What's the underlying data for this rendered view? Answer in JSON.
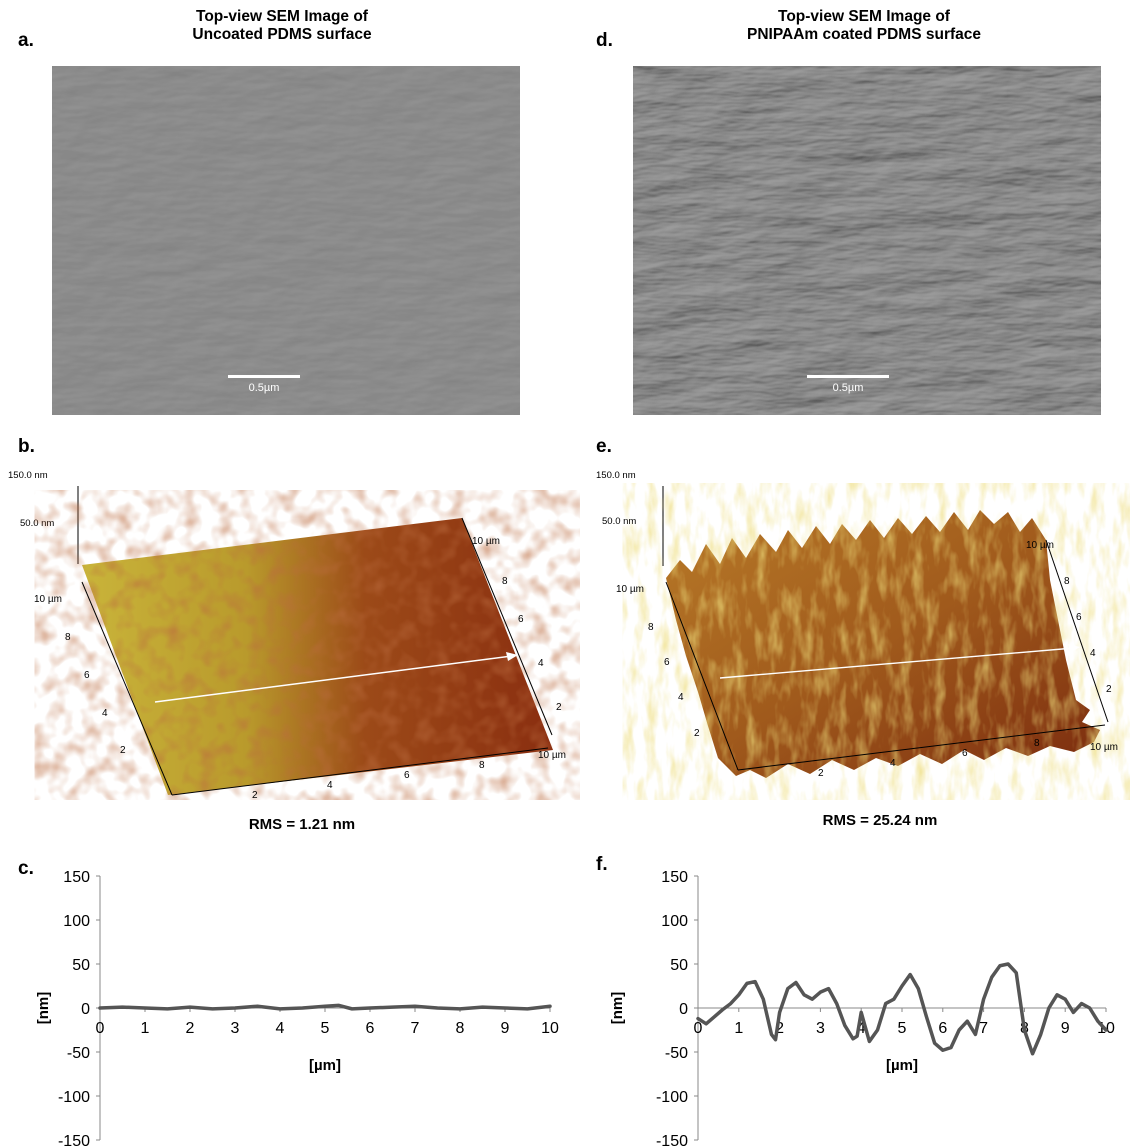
{
  "panels": {
    "a": {
      "letter": "a.",
      "title_line1": "Top-view SEM Image of",
      "title_line2": "Uncoated PDMS surface",
      "scale_bar": "0.5µm"
    },
    "d": {
      "letter": "d.",
      "title_line1": "Top-view SEM Image of",
      "title_line2": "PNIPAAm coated PDMS surface",
      "scale_bar": "0.5µm"
    },
    "b": {
      "letter": "b.",
      "z_top": "150.0 nm",
      "z_mid": "50.0 nm",
      "y_end": "10 µm",
      "y_ticks": [
        "8",
        "6",
        "4",
        "2"
      ],
      "x_ticks": [
        "2",
        "4",
        "6",
        "8"
      ],
      "x_end": "10 µm",
      "right_end": "10 µm",
      "right_ticks": [
        "8",
        "6",
        "4",
        "2"
      ],
      "rms": "RMS = 1.21 nm"
    },
    "e": {
      "letter": "e.",
      "z_top": "150.0 nm",
      "z_mid": "50.0 nm",
      "y_end": "10 µm",
      "y_ticks": [
        "8",
        "6",
        "4",
        "2"
      ],
      "x_ticks": [
        "2",
        "4",
        "6",
        "8"
      ],
      "x_end": "10 µm",
      "right_end": "10 µm",
      "right_ticks": [
        "8",
        "6",
        "4",
        "2"
      ],
      "rms": "RMS = 25.24 nm"
    },
    "c": {
      "letter": "c."
    },
    "f": {
      "letter": "f."
    }
  },
  "colors": {
    "sem_gray": "#8a8a8a",
    "afm_light": "#c9b43a",
    "afm_dark": "#8a2e10",
    "profile_line": "#555555"
  },
  "chart_data": [
    {
      "panel": "c",
      "type": "line",
      "xlabel": "[µm]",
      "ylabel": "[nm]",
      "xlim": [
        0,
        10
      ],
      "ylim": [
        -150,
        150
      ],
      "xticks": [
        0,
        1,
        2,
        3,
        4,
        5,
        6,
        7,
        8,
        9,
        10
      ],
      "yticks": [
        150,
        100,
        50,
        0,
        -50,
        -100,
        -150
      ],
      "grid": false,
      "series": [
        {
          "x": [
            0,
            0.5,
            1,
            1.5,
            2,
            2.5,
            3,
            3.5,
            4,
            4.5,
            5,
            5.3,
            5.6,
            6,
            6.5,
            7,
            7.5,
            8,
            8.5,
            9,
            9.5,
            10
          ],
          "y": [
            0,
            1,
            0,
            -1,
            1,
            -1,
            0,
            2,
            -1,
            0,
            2,
            3,
            -1,
            0,
            1,
            2,
            0,
            -1,
            1,
            0,
            -1,
            2
          ]
        }
      ]
    },
    {
      "panel": "f",
      "type": "line",
      "xlabel": "[µm]",
      "ylabel": "[nm]",
      "xlim": [
        0,
        10
      ],
      "ylim": [
        -150,
        150
      ],
      "xticks": [
        0,
        1,
        2,
        3,
        4,
        5,
        6,
        7,
        8,
        9,
        10
      ],
      "yticks": [
        150,
        100,
        50,
        0,
        -50,
        -100,
        -150
      ],
      "grid": false,
      "series": [
        {
          "x": [
            0,
            0.2,
            0.4,
            0.6,
            0.8,
            1.0,
            1.2,
            1.4,
            1.6,
            1.8,
            1.9,
            2.0,
            2.2,
            2.4,
            2.6,
            2.8,
            3.0,
            3.2,
            3.4,
            3.6,
            3.8,
            3.9,
            4.0,
            4.2,
            4.4,
            4.6,
            4.8,
            5.0,
            5.2,
            5.4,
            5.6,
            5.8,
            6.0,
            6.2,
            6.4,
            6.6,
            6.8,
            7.0,
            7.2,
            7.4,
            7.6,
            7.8,
            8.0,
            8.2,
            8.4,
            8.6,
            8.8,
            9.0,
            9.2,
            9.4,
            9.6,
            9.8,
            10.0
          ],
          "y": [
            -12,
            -18,
            -10,
            -2,
            5,
            15,
            28,
            30,
            10,
            -30,
            -36,
            -5,
            22,
            29,
            15,
            10,
            18,
            22,
            5,
            -20,
            -35,
            -32,
            -5,
            -38,
            -25,
            5,
            10,
            25,
            38,
            22,
            -10,
            -40,
            -48,
            -45,
            -25,
            -15,
            -30,
            10,
            35,
            48,
            50,
            40,
            -25,
            -52,
            -30,
            0,
            15,
            10,
            -5,
            5,
            0,
            -15,
            -25
          ]
        }
      ]
    }
  ]
}
